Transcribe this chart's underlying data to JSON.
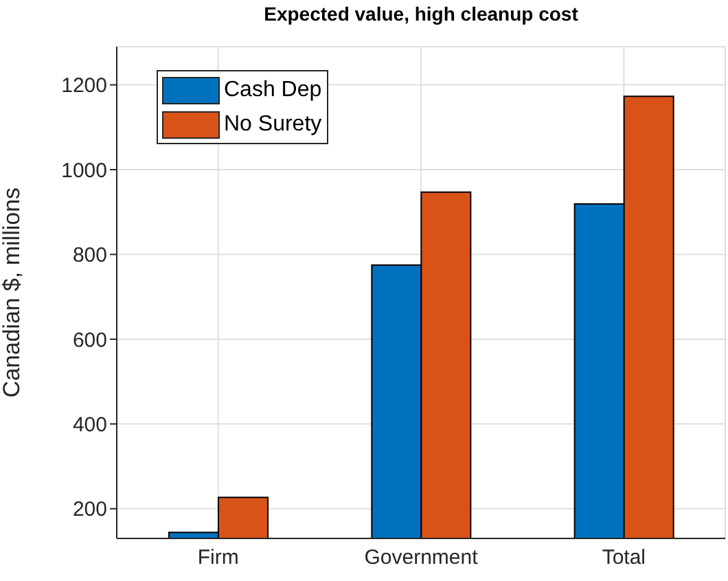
{
  "chart_data": {
    "type": "bar",
    "title": "Expected value, high cleanup cost",
    "ylabel": "Canadian $, millions",
    "categories": [
      "Firm",
      "Government",
      "Total"
    ],
    "series": [
      {
        "name": "Cash Dep",
        "color": "#0072bd",
        "values": [
          144,
          775,
          919
        ]
      },
      {
        "name": "No Surety",
        "color": "#d95319",
        "values": [
          227,
          947,
          1173
        ]
      }
    ],
    "ylim": [
      130,
      1290
    ],
    "yticks": [
      200,
      400,
      600,
      800,
      1000,
      1200
    ],
    "grid": true,
    "legend": "top left"
  }
}
